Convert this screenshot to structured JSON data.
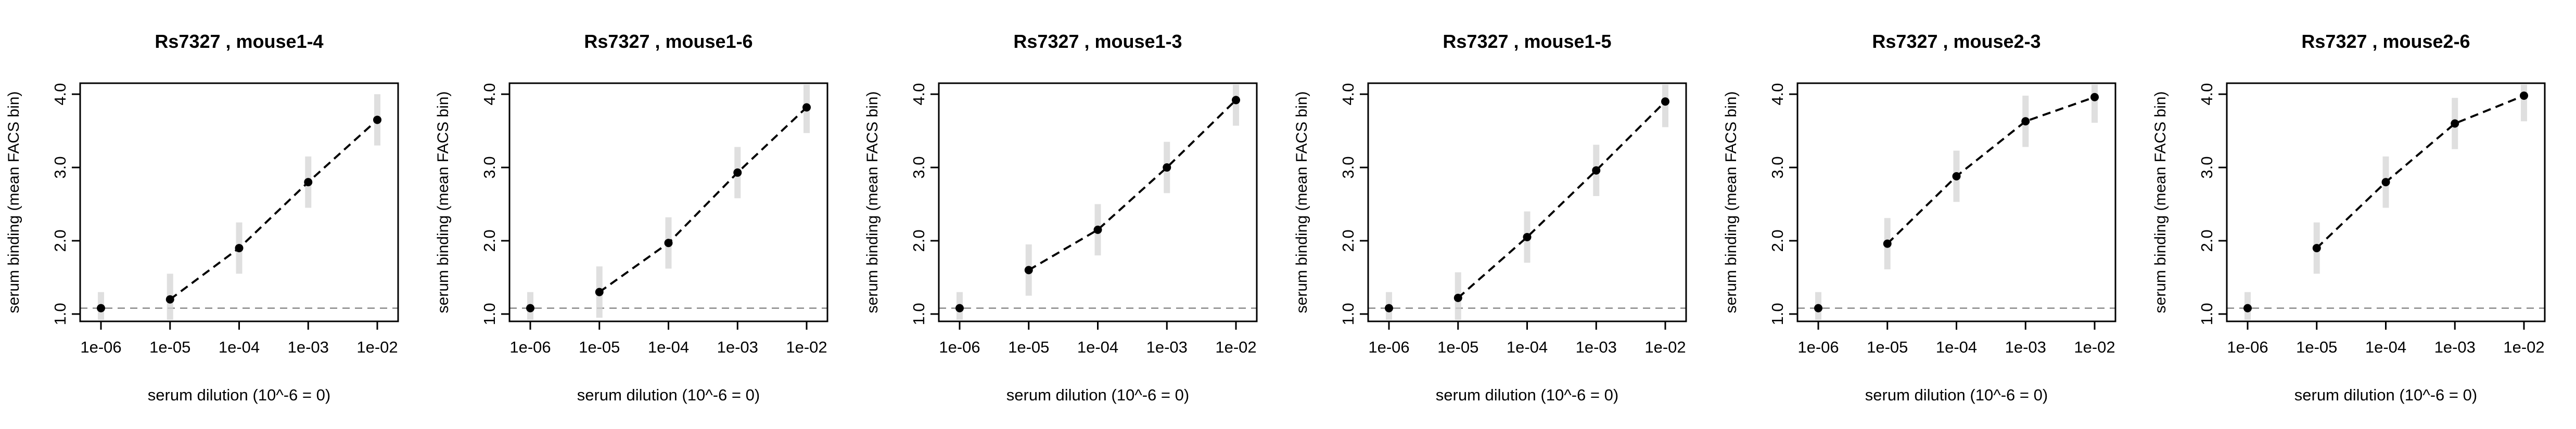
{
  "chart_data": [
    {
      "type": "line",
      "title": "Rs7327 , mouse1-4",
      "xlabel": "serum dilution (10^-6 = 0)",
      "ylabel": "serum binding (mean FACS bin)",
      "x_ticks": [
        "1e-06",
        "1e-05",
        "1e-04",
        "1e-03",
        "1e-02"
      ],
      "y_ticks": [
        "1.0",
        "2.0",
        "3.0",
        "4.0"
      ],
      "ylim": [
        0.9,
        4.15
      ],
      "baseline": 1.08,
      "series": [
        {
          "x": [
            "1e-06",
            "1e-05",
            "1e-04",
            "1e-03",
            "1e-02"
          ],
          "y": [
            1.08,
            1.2,
            1.9,
            2.8,
            3.65
          ]
        }
      ]
    },
    {
      "type": "line",
      "title": "Rs7327 , mouse1-6",
      "xlabel": "serum dilution (10^-6 = 0)",
      "ylabel": "serum binding (mean FACS bin)",
      "x_ticks": [
        "1e-06",
        "1e-05",
        "1e-04",
        "1e-03",
        "1e-02"
      ],
      "y_ticks": [
        "1.0",
        "2.0",
        "3.0",
        "4.0"
      ],
      "ylim": [
        0.9,
        4.15
      ],
      "baseline": 1.08,
      "series": [
        {
          "x": [
            "1e-06",
            "1e-05",
            "1e-04",
            "1e-03",
            "1e-02"
          ],
          "y": [
            1.08,
            1.3,
            1.97,
            2.93,
            3.82
          ]
        }
      ]
    },
    {
      "type": "line",
      "title": "Rs7327 , mouse1-3",
      "xlabel": "serum dilution (10^-6 = 0)",
      "ylabel": "serum binding (mean FACS bin)",
      "x_ticks": [
        "1e-06",
        "1e-05",
        "1e-04",
        "1e-03",
        "1e-02"
      ],
      "y_ticks": [
        "1.0",
        "2.0",
        "3.0",
        "4.0"
      ],
      "ylim": [
        0.9,
        4.15
      ],
      "baseline": 1.08,
      "series": [
        {
          "x": [
            "1e-06",
            "1e-05",
            "1e-04",
            "1e-03",
            "1e-02"
          ],
          "y": [
            1.08,
            1.6,
            2.15,
            3.0,
            3.92
          ]
        }
      ]
    },
    {
      "type": "line",
      "title": "Rs7327 , mouse1-5",
      "xlabel": "serum dilution (10^-6 = 0)",
      "ylabel": "serum binding (mean FACS bin)",
      "x_ticks": [
        "1e-06",
        "1e-05",
        "1e-04",
        "1e-03",
        "1e-02"
      ],
      "y_ticks": [
        "1.0",
        "2.0",
        "3.0",
        "4.0"
      ],
      "ylim": [
        0.9,
        4.15
      ],
      "baseline": 1.08,
      "series": [
        {
          "x": [
            "1e-06",
            "1e-05",
            "1e-04",
            "1e-03",
            "1e-02"
          ],
          "y": [
            1.08,
            1.22,
            2.05,
            2.96,
            3.9
          ]
        }
      ]
    },
    {
      "type": "line",
      "title": "Rs7327 , mouse2-3",
      "xlabel": "serum dilution (10^-6 = 0)",
      "ylabel": "serum binding (mean FACS bin)",
      "x_ticks": [
        "1e-06",
        "1e-05",
        "1e-04",
        "1e-03",
        "1e-02"
      ],
      "y_ticks": [
        "1.0",
        "2.0",
        "3.0",
        "4.0"
      ],
      "ylim": [
        0.9,
        4.15
      ],
      "baseline": 1.08,
      "series": [
        {
          "x": [
            "1e-06",
            "1e-05",
            "1e-04",
            "1e-03",
            "1e-02"
          ],
          "y": [
            1.08,
            1.96,
            2.88,
            3.63,
            3.96
          ]
        }
      ]
    },
    {
      "type": "line",
      "title": "Rs7327 , mouse2-6",
      "xlabel": "serum dilution (10^-6 = 0)",
      "ylabel": "serum binding (mean FACS bin)",
      "x_ticks": [
        "1e-06",
        "1e-05",
        "1e-04",
        "1e-03",
        "1e-02"
      ],
      "y_ticks": [
        "1.0",
        "2.0",
        "3.0",
        "4.0"
      ],
      "ylim": [
        0.9,
        4.15
      ],
      "baseline": 1.08,
      "series": [
        {
          "x": [
            "1e-06",
            "1e-05",
            "1e-04",
            "1e-03",
            "1e-02"
          ],
          "y": [
            1.08,
            1.9,
            2.8,
            3.6,
            3.98
          ]
        }
      ]
    }
  ]
}
